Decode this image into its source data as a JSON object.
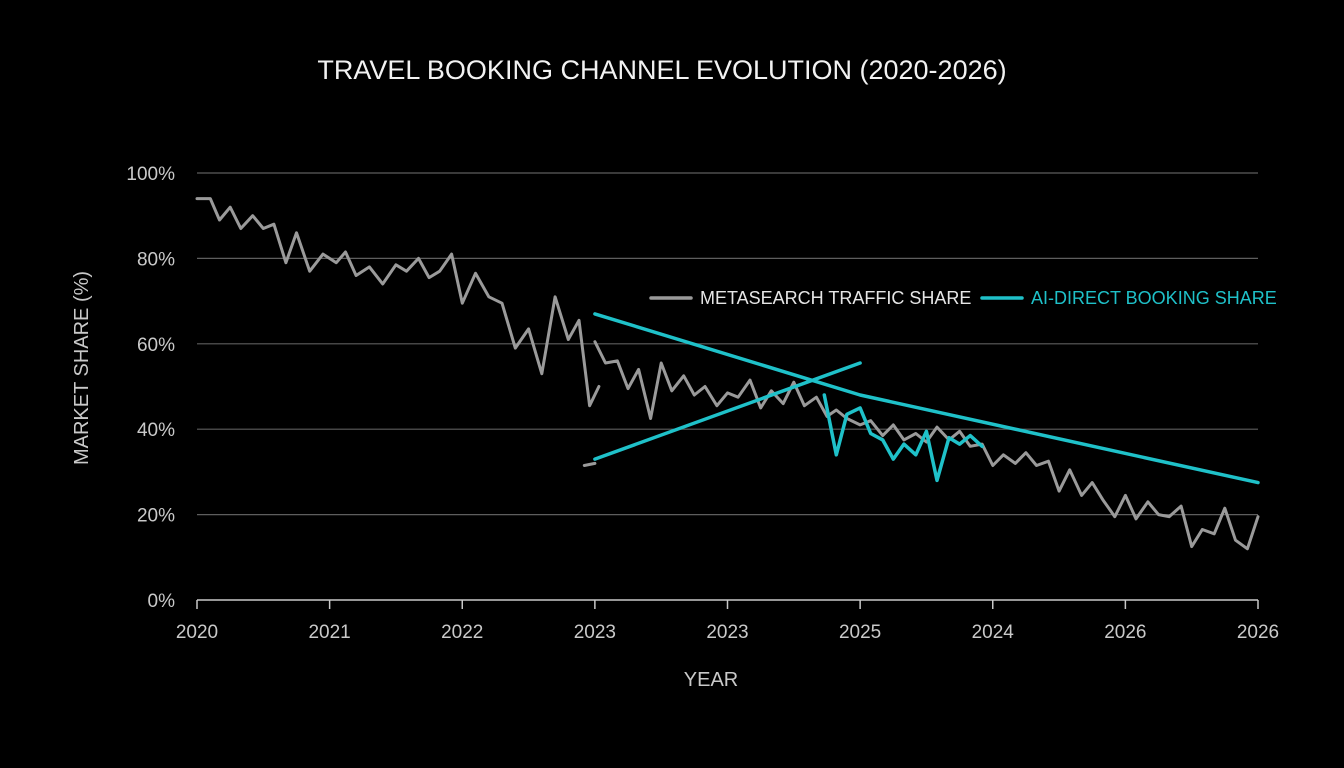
{
  "chart_data": {
    "type": "line",
    "title": "TRAVEL BOOKING CHANNEL EVOLUTION (2020-2026)",
    "xlabel": "YEAR",
    "ylabel": "MARKET SHARE (%)",
    "x_tick_labels": [
      "2020",
      "2021",
      "2022",
      "2023",
      "2023",
      "2025",
      "2024",
      "2026",
      "2026"
    ],
    "x_range": [
      0,
      8
    ],
    "ylim": [
      0,
      100
    ],
    "y_ticks": [
      0,
      20,
      40,
      60,
      80,
      100
    ],
    "y_tick_labels": [
      "0%",
      "20%",
      "40%",
      "60%",
      "80%",
      "100%"
    ],
    "grid": "horizontal",
    "legend_position": "top-right",
    "colors": {
      "background": "#000000",
      "grid": "#5e5e5e",
      "axis": "#c9c9c9",
      "metasearch": "#9a9a9a",
      "ai_direct": "#1fc1c9"
    },
    "series": [
      {
        "name": "METASEARCH TRAFFIC SHARE",
        "color": "#9a9a9a",
        "segments": [
          {
            "x": [
              0,
              0.1,
              0.17,
              0.25,
              0.33,
              0.42,
              0.5,
              0.58,
              0.67,
              0.75,
              0.85,
              0.95,
              1.05,
              1.12,
              1.2,
              1.3,
              1.4,
              1.5,
              1.58,
              1.67,
              1.75,
              1.83,
              1.92,
              2.0,
              2.1,
              2.2,
              2.3,
              2.4,
              2.5,
              2.6,
              2.7,
              2.8,
              2.88,
              2.96,
              3.03
            ],
            "y": [
              94,
              94,
              89,
              92,
              87,
              90,
              87,
              88,
              79,
              86,
              77,
              81,
              79,
              81.5,
              76,
              78,
              74,
              78.5,
              77,
              80,
              75.5,
              77,
              81,
              69.5,
              76.5,
              71,
              69.5,
              59,
              63.5,
              53,
              71,
              61,
              65.5,
              45.5,
              50
            ]
          },
          {
            "x": [
              2.92,
              3.0
            ],
            "y": [
              31.5,
              32
            ]
          },
          {
            "x": [
              3.0,
              3.08,
              3.17,
              3.25,
              3.33,
              3.42,
              3.5,
              3.58,
              3.67,
              3.75,
              3.83,
              3.92,
              4.0,
              4.08,
              4.17,
              4.25,
              4.33,
              4.42,
              4.5,
              4.58,
              4.67,
              4.75,
              4.82,
              4.9,
              5.0,
              5.08,
              5.17,
              5.25,
              5.33,
              5.42,
              5.5,
              5.58,
              5.67,
              5.75,
              5.83,
              5.92,
              6.0,
              6.08,
              6.17,
              6.25,
              6.33,
              6.42,
              6.5,
              6.58,
              6.67,
              6.75,
              6.83,
              6.92,
              7.0,
              7.08,
              7.17,
              7.25,
              7.33,
              7.42,
              7.5,
              7.58,
              7.67,
              7.75,
              7.83,
              7.92,
              8.0
            ],
            "y": [
              60.5,
              55.5,
              56,
              49.5,
              54,
              42.5,
              55.5,
              49,
              52.5,
              48,
              50,
              45.5,
              48.5,
              47.5,
              51.5,
              45,
              49,
              46,
              51,
              45.5,
              47.5,
              43,
              44.5,
              42.5,
              41,
              42,
              38.5,
              41,
              37.5,
              39,
              37,
              40.5,
              37.5,
              39.5,
              36,
              36.5,
              31.5,
              34,
              32,
              34.5,
              31.5,
              32.5,
              25.5,
              30.5,
              24.5,
              27.5,
              23.5,
              19.5,
              24.5,
              19,
              23,
              20,
              19.5,
              22,
              12.5,
              16.5,
              15.5,
              21.5,
              14,
              12,
              19.5
            ]
          }
        ]
      },
      {
        "name": "AI-DIRECT BOOKING SHARE",
        "color": "#1fc1c9",
        "segments": [
          {
            "x": [
              3.0,
              5.0,
              8.0
            ],
            "y": [
              67,
              48,
              27.5
            ]
          },
          {
            "x": [
              3.0,
              5.0
            ],
            "y": [
              33,
              55.5
            ]
          },
          {
            "x": [
              4.73,
              4.82,
              4.9,
              5.0,
              5.08,
              5.17,
              5.25,
              5.33,
              5.42,
              5.5,
              5.58,
              5.67,
              5.75,
              5.83,
              5.92
            ],
            "y": [
              48,
              34,
              43.5,
              45,
              39,
              37.5,
              33,
              36.5,
              34,
              39.5,
              28,
              38,
              36.5,
              38.5,
              36
            ]
          }
        ]
      }
    ]
  }
}
